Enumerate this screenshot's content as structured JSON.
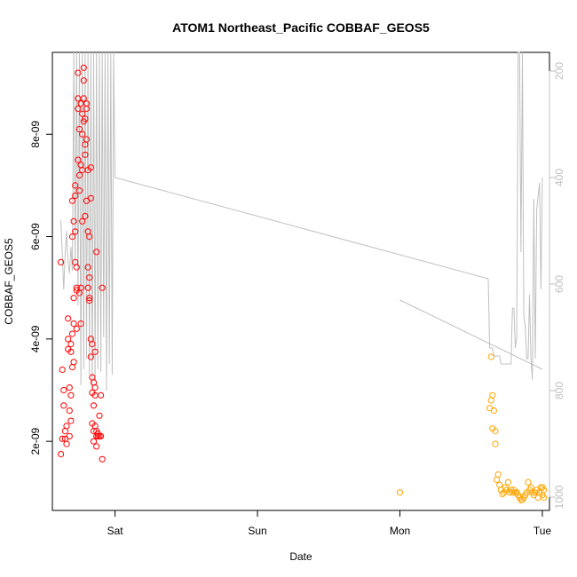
{
  "chart_data": {
    "type": "scatter",
    "title": "ATOM1 Northeast_Pacific COBBAF_GEOS5",
    "xlabel": "Date",
    "ylabel": "COBBAF_GEOS5",
    "x_ticks": [
      "Sat",
      "Sun",
      "Mon",
      "Tue"
    ],
    "x_domain_days": [
      -0.44,
      3.05
    ],
    "y_ticks": [
      "2e-09",
      "4e-09",
      "6e-09",
      "8e-09"
    ],
    "y_tick_values": [
      2e-09,
      4e-09,
      6e-09,
      8e-09
    ],
    "ylim": [
      6.5e-10,
      9.6e-09
    ],
    "y2_ticks": [
      "200",
      "400",
      "600",
      "800",
      "1000"
    ],
    "y2_tick_values": [
      200,
      400,
      600,
      800,
      1000
    ],
    "y2lim": [
      1025,
      165
    ],
    "grid": false,
    "legend": "none",
    "colors": {
      "series1": "#ff0000",
      "series2": "#ffa500",
      "pressure": "#c0c0c0",
      "axis": "#000000",
      "axis_right": "#c0c0c0"
    },
    "pressure_line": [
      [
        -0.38,
        480
      ],
      [
        -0.37,
        545
      ],
      [
        -0.36,
        610
      ],
      [
        -0.35,
        545
      ],
      [
        -0.34,
        500
      ],
      [
        -0.33,
        560
      ],
      [
        -0.32,
        580
      ],
      [
        -0.31,
        530
      ],
      [
        -0.3,
        575
      ],
      [
        -0.29,
        165
      ],
      [
        -0.28,
        565
      ],
      [
        -0.27,
        165
      ],
      [
        -0.26,
        640
      ],
      [
        -0.25,
        165
      ],
      [
        -0.24,
        790
      ],
      [
        -0.23,
        165
      ],
      [
        -0.22,
        760
      ],
      [
        -0.21,
        165
      ],
      [
        -0.2,
        740
      ],
      [
        -0.19,
        165
      ],
      [
        -0.18,
        770
      ],
      [
        -0.17,
        165
      ],
      [
        -0.16,
        800
      ],
      [
        -0.15,
        165
      ],
      [
        -0.14,
        780
      ],
      [
        -0.13,
        165
      ],
      [
        -0.12,
        760
      ],
      [
        -0.11,
        165
      ],
      [
        -0.1,
        765
      ],
      [
        -0.09,
        165
      ],
      [
        -0.08,
        700
      ],
      [
        -0.07,
        165
      ],
      [
        -0.06,
        800
      ],
      [
        -0.05,
        165
      ],
      [
        -0.04,
        750
      ],
      [
        -0.03,
        165
      ],
      [
        -0.02,
        770
      ],
      [
        -0.01,
        165
      ],
      [
        0.0,
        400
      ],
      [
        2.62,
        590
      ],
      [
        2.63,
        720
      ],
      [
        2.65,
        720
      ],
      [
        2.66,
        735
      ],
      [
        2.7,
        735
      ],
      [
        2.71,
        750
      ],
      [
        2.78,
        750
      ],
      [
        2.79,
        645
      ],
      [
        2.8,
        645
      ],
      [
        2.81,
        720
      ],
      [
        2.82,
        700
      ],
      [
        2.83,
        165
      ],
      [
        2.84,
        165
      ],
      [
        2.85,
        540
      ],
      [
        2.86,
        165
      ],
      [
        2.87,
        660
      ],
      [
        2.88,
        680
      ],
      [
        2.89,
        740
      ],
      [
        2.9,
        740
      ],
      [
        2.91,
        620
      ],
      [
        2.92,
        740
      ],
      [
        2.93,
        780
      ],
      [
        2.94,
        440
      ],
      [
        2.95,
        740
      ],
      [
        2.96,
        460
      ],
      [
        2.98,
        410
      ],
      [
        2.99,
        610
      ],
      [
        3.0,
        400
      ]
    ],
    "pressure_line_2": [
      [
        2.0,
        630
      ],
      [
        3.0,
        760
      ]
    ],
    "series": [
      {
        "points": [
          [
            -0.38,
            5.5e-09
          ],
          [
            -0.38,
            1.75e-09
          ],
          [
            -0.37,
            2.05e-09
          ],
          [
            -0.37,
            3.4e-09
          ],
          [
            -0.36,
            3e-09
          ],
          [
            -0.36,
            2.7e-09
          ],
          [
            -0.35,
            2.2e-09
          ],
          [
            -0.35,
            2.05e-09
          ],
          [
            -0.34,
            2.3e-09
          ],
          [
            -0.34,
            1.95e-09
          ],
          [
            -0.33,
            3.8e-09
          ],
          [
            -0.33,
            4e-09
          ],
          [
            -0.33,
            4.4e-09
          ],
          [
            -0.32,
            2.6e-09
          ],
          [
            -0.32,
            3.05e-09
          ],
          [
            -0.32,
            2.1e-09
          ],
          [
            -0.31,
            2.4e-09
          ],
          [
            -0.31,
            2.9e-09
          ],
          [
            -0.31,
            3.9e-09
          ],
          [
            -0.31,
            3.75e-09
          ],
          [
            -0.3,
            3.45e-09
          ],
          [
            -0.3,
            4.1e-09
          ],
          [
            -0.3,
            6e-09
          ],
          [
            -0.3,
            6.7e-09
          ],
          [
            -0.29,
            4.8e-09
          ],
          [
            -0.29,
            6.3e-09
          ],
          [
            -0.29,
            3.55e-09
          ],
          [
            -0.29,
            4.3e-09
          ],
          [
            -0.28,
            5.5e-09
          ],
          [
            -0.28,
            6.1e-09
          ],
          [
            -0.28,
            7e-09
          ],
          [
            -0.28,
            6.8e-09
          ],
          [
            -0.27,
            5e-09
          ],
          [
            -0.27,
            5.4e-09
          ],
          [
            -0.27,
            4.95e-09
          ],
          [
            -0.27,
            4.2e-09
          ],
          [
            -0.26,
            7.5e-09
          ],
          [
            -0.26,
            8.7e-09
          ],
          [
            -0.26,
            9.2e-09
          ],
          [
            -0.26,
            8.5e-09
          ],
          [
            -0.25,
            8.1e-09
          ],
          [
            -0.25,
            7.2e-09
          ],
          [
            -0.25,
            6.9e-09
          ],
          [
            -0.25,
            4.9e-09
          ],
          [
            -0.24,
            7.4e-09
          ],
          [
            -0.24,
            8.6e-09
          ],
          [
            -0.24,
            5e-09
          ],
          [
            -0.24,
            4.3e-09
          ],
          [
            -0.23,
            8e-09
          ],
          [
            -0.23,
            8.4e-09
          ],
          [
            -0.23,
            7.3e-09
          ],
          [
            -0.23,
            6.3e-09
          ],
          [
            -0.22,
            8.7e-09
          ],
          [
            -0.22,
            9.3e-09
          ],
          [
            -0.22,
            9.05e-09
          ],
          [
            -0.22,
            8.25e-09
          ],
          [
            -0.21,
            8.3e-09
          ],
          [
            -0.21,
            7.8e-09
          ],
          [
            -0.21,
            7.6e-09
          ],
          [
            -0.21,
            6.4e-09
          ],
          [
            -0.2,
            8.6e-09
          ],
          [
            -0.2,
            8.5e-09
          ],
          [
            -0.2,
            7.9e-09
          ],
          [
            -0.2,
            6.7e-09
          ],
          [
            -0.19,
            5.4e-09
          ],
          [
            -0.19,
            6.1e-09
          ],
          [
            -0.19,
            7.3e-09
          ],
          [
            -0.19,
            5e-09
          ],
          [
            -0.18,
            4.8e-09
          ],
          [
            -0.18,
            5.2e-09
          ],
          [
            -0.18,
            4.75e-09
          ],
          [
            -0.18,
            6e-09
          ],
          [
            -0.17,
            7.35e-09
          ],
          [
            -0.17,
            6.75e-09
          ],
          [
            -0.17,
            4e-09
          ],
          [
            -0.17,
            3.65e-09
          ],
          [
            -0.16,
            3.9e-09
          ],
          [
            -0.16,
            3.25e-09
          ],
          [
            -0.16,
            2.95e-09
          ],
          [
            -0.16,
            2.35e-09
          ],
          [
            -0.15,
            2e-09
          ],
          [
            -0.15,
            2.2e-09
          ],
          [
            -0.15,
            2.7e-09
          ],
          [
            -0.15,
            3.15e-09
          ],
          [
            -0.14,
            3.75e-09
          ],
          [
            -0.14,
            3.05e-09
          ],
          [
            -0.14,
            2.9e-09
          ],
          [
            -0.14,
            2.3e-09
          ],
          [
            -0.13,
            2.1e-09
          ],
          [
            -0.13,
            2.2e-09
          ],
          [
            -0.13,
            1.9e-09
          ],
          [
            -0.13,
            5.7e-09
          ],
          [
            -0.12,
            2.15e-09
          ],
          [
            -0.12,
            2.1e-09
          ],
          [
            -0.11,
            2.1e-09
          ],
          [
            -0.11,
            2.5e-09
          ],
          [
            -0.1,
            2.9e-09
          ],
          [
            -0.1,
            2.1e-09
          ],
          [
            -0.09,
            5e-09
          ],
          [
            -0.09,
            1.65e-09
          ]
        ]
      },
      {
        "points": [
          [
            2.0,
            1e-09
          ],
          [
            2.63,
            2.65e-09
          ],
          [
            2.64,
            2.8e-09
          ],
          [
            2.64,
            3.65e-09
          ],
          [
            2.65,
            2.9e-09
          ],
          [
            2.65,
            2.25e-09
          ],
          [
            2.66,
            2.6e-09
          ],
          [
            2.67,
            1.95e-09
          ],
          [
            2.67,
            2.2e-09
          ],
          [
            2.68,
            1.25e-09
          ],
          [
            2.69,
            1.35e-09
          ],
          [
            2.7,
            1.15e-09
          ],
          [
            2.71,
            1.05e-09
          ],
          [
            2.72,
            9.7e-10
          ],
          [
            2.73,
            1e-09
          ],
          [
            2.74,
            1.1e-09
          ],
          [
            2.75,
            1.05e-09
          ],
          [
            2.76,
            1.2e-09
          ],
          [
            2.77,
            1e-09
          ],
          [
            2.78,
            1.05e-09
          ],
          [
            2.79,
            1e-09
          ],
          [
            2.8,
            1.05e-09
          ],
          [
            2.81,
            1e-09
          ],
          [
            2.82,
            1e-09
          ],
          [
            2.83,
            9.5e-10
          ],
          [
            2.84,
            9e-10
          ],
          [
            2.85,
            8.5e-10
          ],
          [
            2.86,
            8.6e-10
          ],
          [
            2.87,
            9e-10
          ],
          [
            2.88,
            9.5e-10
          ],
          [
            2.89,
            1e-09
          ],
          [
            2.9,
            1.2e-09
          ],
          [
            2.91,
            1.05e-09
          ],
          [
            2.92,
            1.1e-09
          ],
          [
            2.93,
            1e-09
          ],
          [
            2.94,
            9.5e-10
          ],
          [
            2.95,
            1e-09
          ],
          [
            2.96,
            1.05e-09
          ],
          [
            2.97,
            9e-10
          ],
          [
            2.98,
            1e-09
          ],
          [
            2.99,
            1.1e-09
          ],
          [
            3.0,
            9.5e-10
          ],
          [
            3.0,
            1.1e-09
          ],
          [
            3.01,
            1.05e-09
          ],
          [
            3.01,
            9e-10
          ]
        ]
      }
    ]
  }
}
